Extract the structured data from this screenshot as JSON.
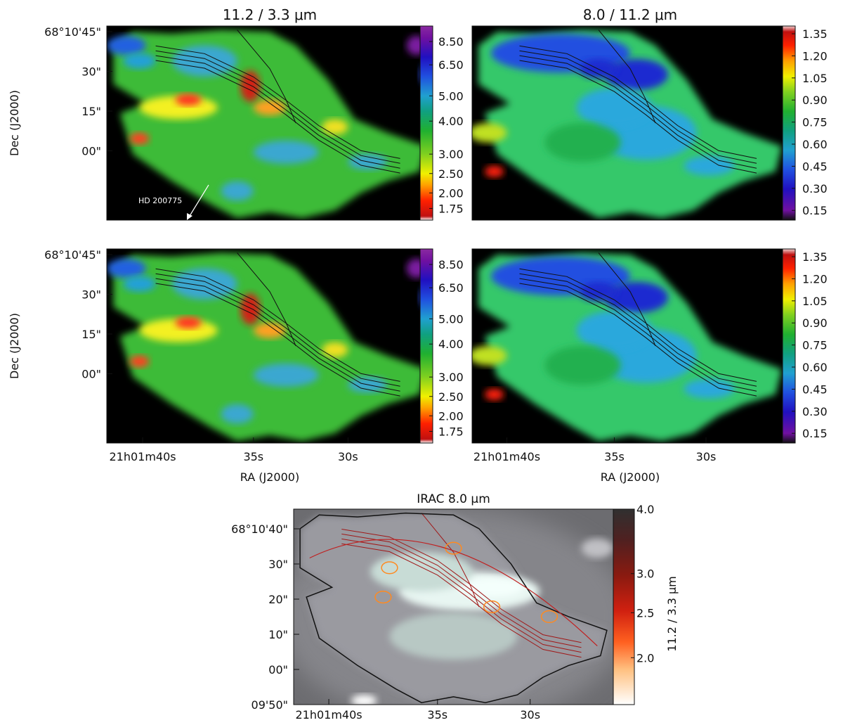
{
  "chart_data": [
    {
      "type": "heatmap",
      "title": "11.2 / 3.3 μm",
      "ylabel": "Dec (J2000)",
      "xlabel": "",
      "y_ticks": [
        "68°10'45\"",
        "30\"",
        "15\"",
        "00\""
      ],
      "x_ticks": [],
      "colorbar_ticks": [
        "8.50",
        "6.50",
        "5.00",
        "4.00",
        "3.00",
        "2.50",
        "2.00",
        "1.75"
      ],
      "colorbar_range": [
        1.6,
        10.0
      ],
      "colormap": "spectral-reversed",
      "annotation": "HD 200775",
      "contours": true
    },
    {
      "type": "heatmap",
      "title": "8.0 / 11.2 μm",
      "ylabel": "",
      "xlabel": "",
      "y_ticks": [],
      "x_ticks": [],
      "colorbar_ticks": [
        "1.35",
        "1.20",
        "1.05",
        "0.90",
        "0.75",
        "0.60",
        "0.45",
        "0.30",
        "0.15"
      ],
      "colorbar_range": [
        0.1,
        1.4
      ],
      "colormap": "spectral",
      "contours": true
    },
    {
      "type": "heatmap",
      "title": "",
      "ylabel": "Dec (J2000)",
      "xlabel": "RA (J2000)",
      "y_ticks": [
        "68°10'45\"",
        "30\"",
        "15\"",
        "00\""
      ],
      "x_ticks": [
        "21h01m40s",
        "35s",
        "30s"
      ],
      "colorbar_ticks": [
        "8.50",
        "6.50",
        "5.00",
        "4.00",
        "3.00",
        "2.50",
        "2.00",
        "1.75"
      ],
      "colorbar_range": [
        1.6,
        10.0
      ],
      "colormap": "spectral-reversed",
      "contours": true
    },
    {
      "type": "heatmap",
      "title": "",
      "ylabel": "",
      "xlabel": "RA (J2000)",
      "y_ticks": [],
      "x_ticks": [
        "21h01m40s",
        "35s",
        "30s"
      ],
      "colorbar_ticks": [
        "1.35",
        "1.20",
        "1.05",
        "0.90",
        "0.75",
        "0.60",
        "0.45",
        "0.30",
        "0.15"
      ],
      "colorbar_range": [
        0.1,
        1.4
      ],
      "colormap": "spectral",
      "contours": true
    },
    {
      "type": "heatmap",
      "title": "IRAC 8.0 μm",
      "ylabel": "",
      "xlabel": "",
      "y_ticks": [
        "68°10'40\"",
        "30\"",
        "20\"",
        "10\"",
        "00\"",
        "09'50\""
      ],
      "x_ticks": [
        "21h01m40s",
        "35s",
        "30s"
      ],
      "colorbar_label": "11.2 / 3.3 μm",
      "colorbar_ticks": [
        "4.0",
        "3.0",
        "2.5",
        "2.0"
      ],
      "colorbar_range": [
        1.5,
        4.0
      ],
      "colormap": "grayscale image with red/orange contour levels",
      "contours": true
    }
  ]
}
